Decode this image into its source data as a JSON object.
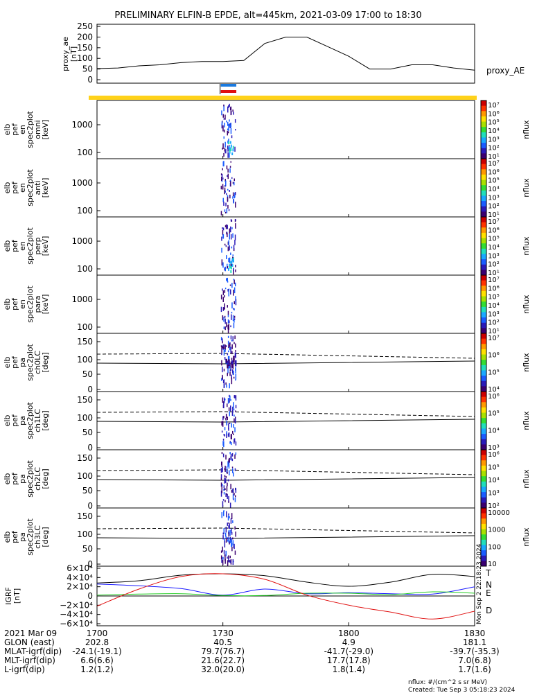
{
  "title": "PRELIMINARY ELFIN-B EPDE, alt=445km, 2021-03-09 17:00 to 18:30",
  "proxy_ae": {
    "ylabel": [
      "proxy_ae",
      "[nT]"
    ],
    "yticks": [
      "250",
      "200",
      "150",
      "100",
      "50",
      "0"
    ],
    "right_label": "proxy_AE"
  },
  "panels": [
    {
      "ylabel": [
        "elb",
        "pef",
        "en",
        "spec2plot",
        "omni",
        "[keV]"
      ],
      "yticks": [
        "1000",
        "100"
      ],
      "cb_ticks": [
        "10⁷",
        "10⁶",
        "10⁵",
        "10⁴",
        "10³",
        "10²",
        "10¹"
      ],
      "cb_label": "nflux"
    },
    {
      "ylabel": [
        "elb",
        "pef",
        "en",
        "spec2plot",
        "anti",
        "[keV]"
      ],
      "yticks": [
        "1000",
        "100"
      ],
      "cb_ticks": [
        "10⁷",
        "10⁶",
        "10⁵",
        "10⁴",
        "10³",
        "10²",
        "10¹"
      ],
      "cb_label": "nflux"
    },
    {
      "ylabel": [
        "elb",
        "pef",
        "en",
        "spec2plot",
        "perp",
        "[keV]"
      ],
      "yticks": [
        "1000",
        "100"
      ],
      "cb_ticks": [
        "10⁷",
        "10⁶",
        "10⁵",
        "10⁴",
        "10³",
        "10²",
        "10¹"
      ],
      "cb_label": "nflux"
    },
    {
      "ylabel": [
        "elb",
        "pef",
        "en",
        "spec2plot",
        "para",
        "[keV]"
      ],
      "yticks": [
        "1000",
        "100"
      ],
      "cb_ticks": [
        "10⁷",
        "10⁶",
        "10⁵",
        "10⁴",
        "10³",
        "10²",
        "10¹"
      ],
      "cb_label": "nflux"
    },
    {
      "ylabel": [
        "elb",
        "pef",
        "pa",
        "spec2plot",
        "ch0LC",
        "[deg]"
      ],
      "yticks": [
        "150",
        "100",
        "50",
        "0"
      ],
      "cb_ticks": [
        "10⁷",
        "10⁶",
        "10⁵",
        "10⁴"
      ],
      "cb_label": "nflux"
    },
    {
      "ylabel": [
        "elb",
        "pef",
        "pa",
        "spec2plot",
        "ch1LC",
        "[deg]"
      ],
      "yticks": [
        "150",
        "100",
        "50",
        "0"
      ],
      "cb_ticks": [
        "10⁶",
        "10⁵",
        "10⁴",
        "10³"
      ],
      "cb_label": "nflux"
    },
    {
      "ylabel": [
        "elb",
        "pef",
        "pa",
        "spec2plot",
        "ch2LC",
        "[deg]"
      ],
      "yticks": [
        "150",
        "100",
        "50",
        "0"
      ],
      "cb_ticks": [
        "10⁶",
        "10⁵",
        "10⁴",
        "10³",
        "10²"
      ],
      "cb_label": "nflux"
    },
    {
      "ylabel": [
        "elb",
        "pef",
        "pa",
        "spec2plot",
        "ch3LC",
        "[deg]"
      ],
      "yticks": [
        "150",
        "100",
        "50",
        "0"
      ],
      "cb_ticks": [
        "10000",
        "1000",
        "100",
        "10"
      ],
      "cb_label": "nflux"
    }
  ],
  "igrf": {
    "ylabel": [
      "IGRF",
      "[nT]"
    ],
    "yticks": [
      "6×10⁴",
      "4×10⁴",
      "2×10⁴",
      "0",
      "−2×10⁴",
      "−4×10⁴",
      "−6×10⁴"
    ],
    "legend": [
      {
        "label": "T",
        "color": "#000000"
      },
      {
        "label": "N",
        "color": "#1a1aff"
      },
      {
        "label": "E",
        "color": "#22cc22"
      },
      {
        "label": "D",
        "color": "#e01010"
      }
    ],
    "side_note": "Mon Sep 2 22:18:23 2024"
  },
  "footer": {
    "rows": [
      {
        "label": "2021 Mar 09",
        "values": [
          "1700",
          "1730",
          "1800",
          "1830"
        ]
      },
      {
        "label": "GLON (east)",
        "values": [
          "202.8",
          "40.5",
          "4.9",
          "181.1"
        ]
      },
      {
        "label": "MLAT-igrf(dip)",
        "values": [
          "-24.1(-19.1)",
          "79.7(76.7)",
          "-41.7(-29.0)",
          "-39.7(-35.3)"
        ]
      },
      {
        "label": "MLT-igrf(dip)",
        "values": [
          "6.6(6.6)",
          "21.6(22.7)",
          "17.7(17.8)",
          "7.0(6.8)"
        ]
      },
      {
        "label": "L-igrf(dip)",
        "values": [
          "1.2(1.2)",
          "32.0(20.0)",
          "1.8(1.4)",
          "1.7(1.6)"
        ]
      }
    ],
    "units_note": "nflux: #/(cm^2 s sr MeV)",
    "created": "Created: Tue Sep  3 05:18:23 2024"
  },
  "chart_data": {
    "type": "line",
    "title": "PRELIMINARY ELFIN-B EPDE, alt=445km, 2021-03-09 17:00 to 18:30",
    "x_ticks": [
      "1700",
      "1730",
      "1800",
      "1830"
    ],
    "series": [
      {
        "name": "proxy_AE",
        "x": [
          "17:00",
          "17:05",
          "17:10",
          "17:15",
          "17:20",
          "17:25",
          "17:30",
          "17:35",
          "17:40",
          "17:45",
          "17:50",
          "17:55",
          "18:00",
          "18:05",
          "18:10",
          "18:15",
          "18:20",
          "18:25",
          "18:30"
        ],
        "values": [
          52,
          55,
          65,
          70,
          80,
          85,
          85,
          90,
          170,
          200,
          200,
          155,
          110,
          50,
          50,
          70,
          70,
          55,
          45
        ]
      },
      {
        "name": "T",
        "x": [
          "17:00",
          "17:10",
          "17:20",
          "17:30",
          "17:40",
          "17:50",
          "18:00",
          "18:10",
          "18:20",
          "18:30"
        ],
        "values": [
          28000,
          33000,
          45000,
          48000,
          44000,
          30000,
          21000,
          30000,
          47000,
          42000
        ]
      },
      {
        "name": "N",
        "x": [
          "17:00",
          "17:10",
          "17:20",
          "17:30",
          "17:40",
          "17:50",
          "18:00",
          "18:10",
          "18:20",
          "18:30"
        ],
        "values": [
          26000,
          22000,
          16000,
          2000,
          15000,
          5000,
          7000,
          5000,
          4000,
          20000
        ]
      },
      {
        "name": "E",
        "x": [
          "17:00",
          "17:10",
          "17:20",
          "17:30",
          "17:40",
          "17:50",
          "18:00",
          "18:10",
          "18:20",
          "18:30"
        ],
        "values": [
          2000,
          4000,
          5000,
          1000,
          1000,
          6000,
          6000,
          3000,
          9000,
          6000
        ]
      },
      {
        "name": "D",
        "x": [
          "17:00",
          "17:10",
          "17:20",
          "17:30",
          "17:40",
          "17:50",
          "18:00",
          "18:10",
          "18:20",
          "18:30"
        ],
        "values": [
          -22000,
          15000,
          42000,
          48000,
          36000,
          2000,
          -20000,
          -35000,
          -50000,
          -33000
        ]
      }
    ],
    "ylim_proxy_ae": [
      0,
      260
    ],
    "ylim_igrf": [
      -60000,
      60000
    ]
  }
}
